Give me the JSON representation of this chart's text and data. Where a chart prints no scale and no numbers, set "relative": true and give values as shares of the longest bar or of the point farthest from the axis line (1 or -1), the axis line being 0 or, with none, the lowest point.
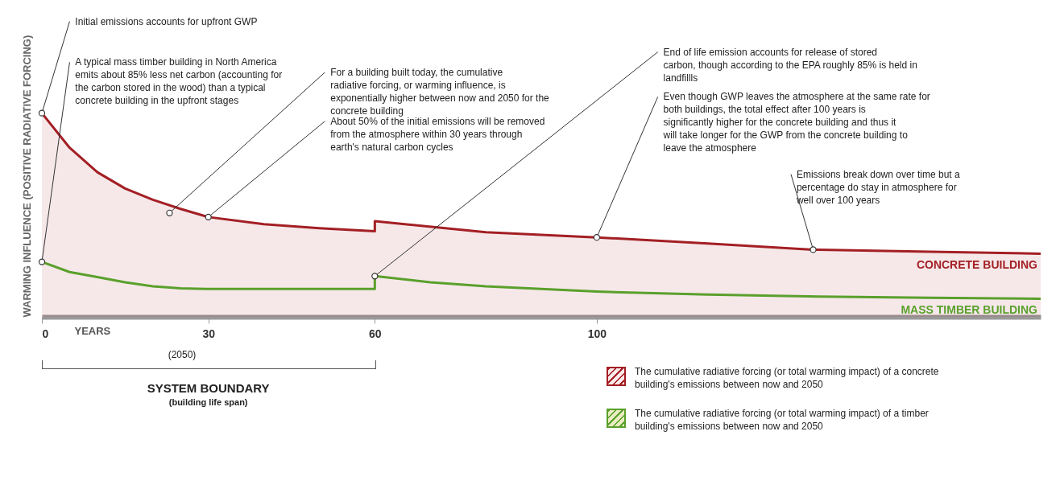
{
  "chart_data": {
    "type": "line",
    "relative": true,
    "ylabel": "WARMING INFLUENCE (POSITIVE RADIATIVE FORCING)",
    "xlabel": "YEARS",
    "xlim": [
      0,
      180
    ],
    "xticks": [
      0,
      30,
      60,
      100
    ],
    "series": [
      {
        "name": "CONCRETE BUILDING",
        "type": "area",
        "color": "#a31f24",
        "x": [
          0,
          5,
          10,
          15,
          20,
          25,
          30,
          40,
          50,
          60,
          60,
          80,
          100,
          120,
          139,
          160,
          180
        ],
        "values": [
          1,
          0.83,
          0.71,
          0.63,
          0.575,
          0.53,
          0.49,
          0.455,
          0.435,
          0.42,
          0.47,
          0.415,
          0.39,
          0.36,
          0.33,
          0.32,
          0.31
        ]
      },
      {
        "name": "MASS TIMBER BUILDING",
        "color": "#5aa02c",
        "x": [
          0,
          5,
          10,
          15,
          20,
          25,
          30,
          60,
          60,
          70,
          80,
          100,
          120,
          140,
          160,
          180
        ],
        "values": [
          0.27,
          0.22,
          0.195,
          0.17,
          0.15,
          0.14,
          0.137,
          0.137,
          0.2,
          0.17,
          0.15,
          0.124,
          0.11,
          0.1,
          0.094,
          0.089
        ]
      }
    ],
    "annotations": [
      {
        "text": "Initial emissions accounts for upfront GWP",
        "x": 0,
        "y": 1
      },
      {
        "text": "A typical mass timber building in North America emits about 85% less net carbon (accounting for the carbon stored in the wood) than a typical concrete building in the upfront stages",
        "x": 0,
        "y": 0.27
      },
      {
        "text": "For a building built today, the cumulative radiative forcing, or warming influence, is exponentially higher between now and 2050 for the concrete building",
        "x": 23,
        "y": 0.51
      },
      {
        "text": "About 50% of the initial emissions will be removed from the atmosphere within 30 years through earth's natural carbon cycles",
        "x": 30,
        "y": 0.49
      },
      {
        "text": "End of life emission accounts for release of stored carbon, though according to the EPA roughly 85% is held in landfillls",
        "x": 60,
        "y": 0.2
      },
      {
        "text": "Even though GWP leaves the atmosphere at the same rate for both buildings, the total effect after 100 years is significantly higher for the concrete building and thus it will take longer for the GWP from the concrete building to leave the atmosphere",
        "x": 100,
        "y": 0.39
      },
      {
        "text": "Emissions break down  over time but a percentage do stay in atmosphere for well over 100 years",
        "x": 139,
        "y": 0.33
      },
      "The cumulative radiative forcing (or total warming impact) of a concrete building's emissions between now and 2050",
      "The cumulative radiative forcing (or total warming impact) of a timber building's emissions between now and 2050",
      "SYSTEM BOUNDARY",
      "(building life span)",
      "(2050)"
    ]
  }
}
